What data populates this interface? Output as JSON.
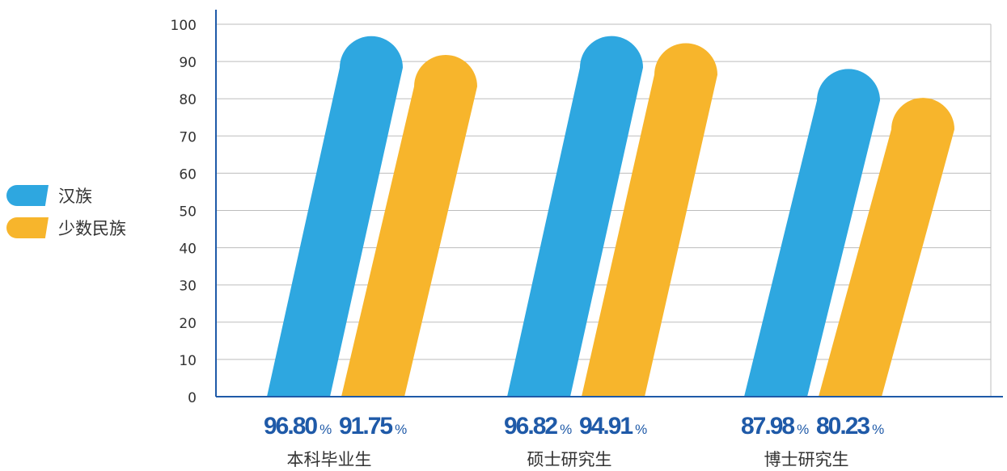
{
  "legend": {
    "items": [
      {
        "label": "汉族",
        "color": "#2EA7E0"
      },
      {
        "label": "少数民族",
        "color": "#F7B52C"
      }
    ]
  },
  "chart_data": {
    "type": "bar",
    "categories": [
      "本科毕业生",
      "硕士研究生",
      "博士研究生"
    ],
    "series": [
      {
        "name": "汉族",
        "color": "#2EA7E0",
        "values": [
          96.8,
          96.82,
          87.98
        ],
        "labels": [
          "96.80",
          "96.82",
          "87.98"
        ]
      },
      {
        "name": "少数民族",
        "color": "#F7B52C",
        "values": [
          91.75,
          94.91,
          80.23
        ],
        "labels": [
          "91.75",
          "94.91",
          "80.23"
        ]
      }
    ],
    "unit": "%",
    "ylim": [
      0,
      100
    ],
    "yticks": [
      0,
      10,
      20,
      30,
      40,
      50,
      60,
      70,
      80,
      90,
      100
    ],
    "grid": true,
    "legend_position": "left",
    "value_label_color": "#1F5AA8",
    "axis_color": "#1F5AA8"
  }
}
